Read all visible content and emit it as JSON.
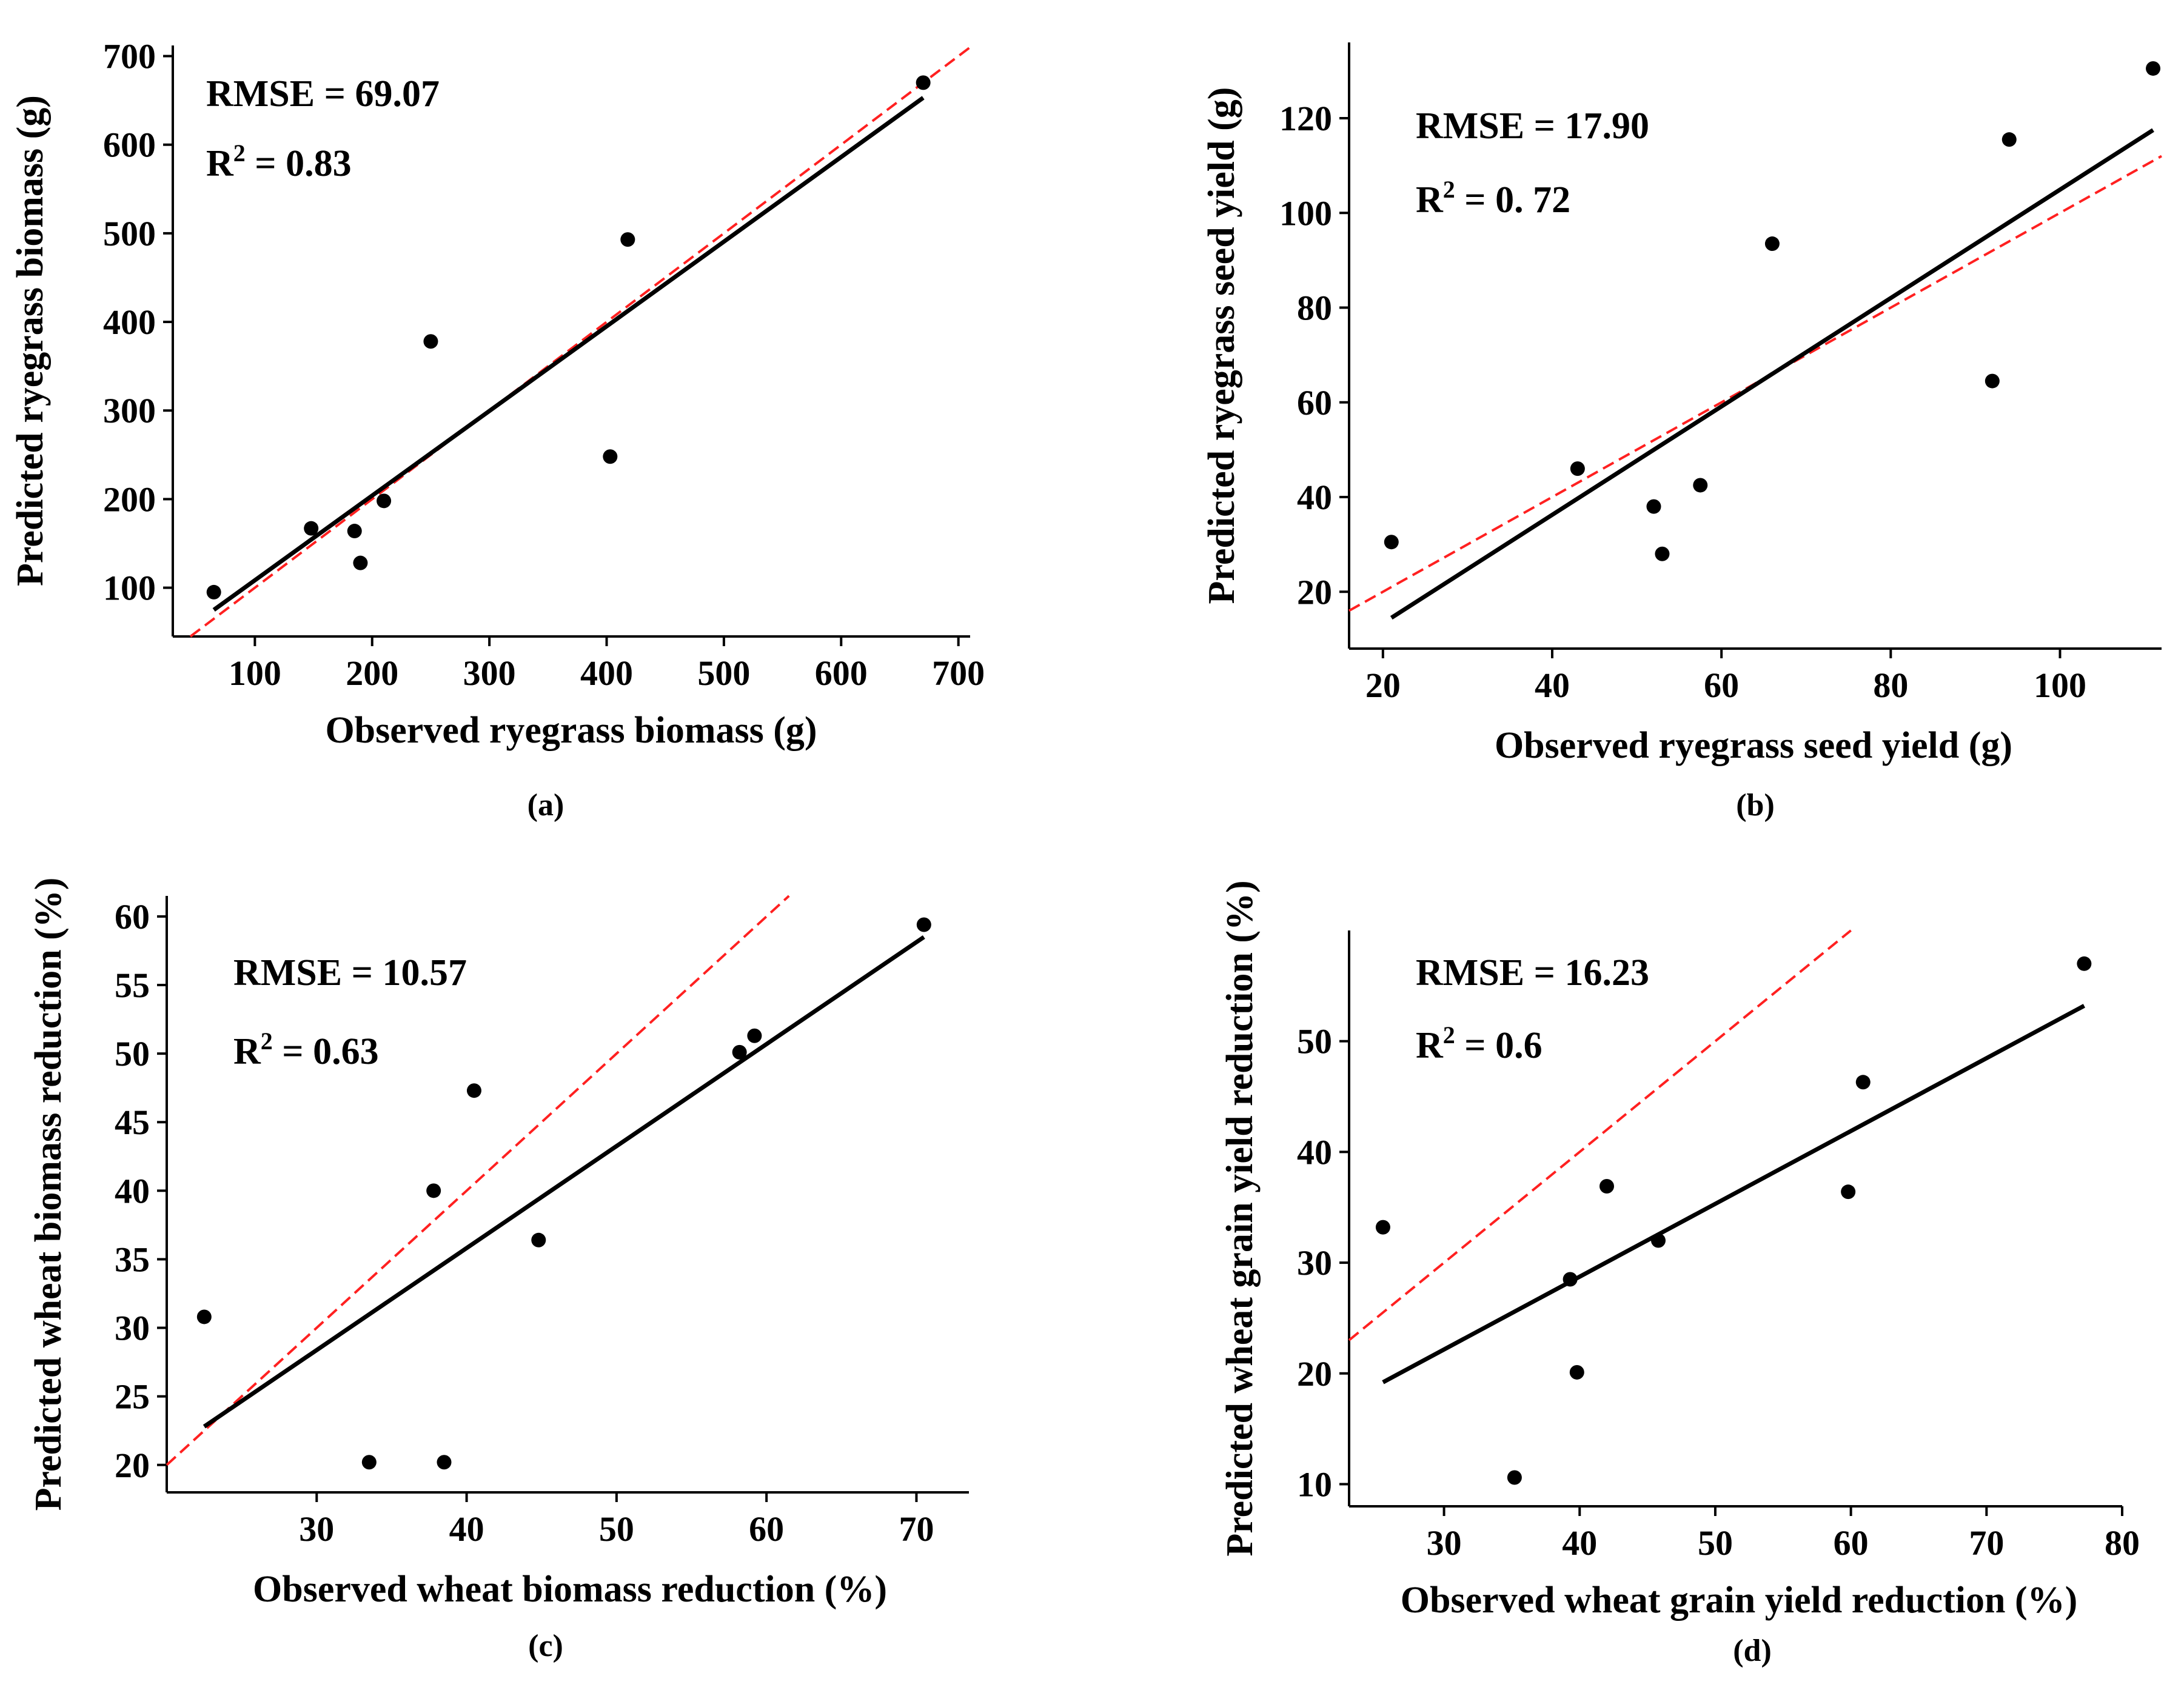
{
  "figure": {
    "panels": [
      "a",
      "b",
      "c",
      "d"
    ]
  },
  "chart_data": [
    {
      "id": "a",
      "type": "scatter",
      "label": "(a)",
      "xlabel": "Observed ryegrass biomass (g)",
      "ylabel": "Predicted ryegrass biomass (g)",
      "xlim": [
        30,
        710
      ],
      "ylim": [
        45,
        712
      ],
      "xticks": [
        100,
        200,
        300,
        400,
        500,
        600,
        700
      ],
      "yticks": [
        100,
        200,
        300,
        400,
        500,
        600,
        700
      ],
      "rmse_text": "RMSE = 69.07",
      "r2_prefix": "R",
      "r2_sup": "2",
      "r2_value": " = 0.83",
      "points": [
        [
          65,
          95
        ],
        [
          148,
          167
        ],
        [
          185,
          164
        ],
        [
          190,
          128
        ],
        [
          210,
          198
        ],
        [
          250,
          378
        ],
        [
          403,
          248
        ],
        [
          418,
          493
        ],
        [
          670,
          670
        ]
      ],
      "fit_line": [
        [
          65,
          75
        ],
        [
          670,
          653
        ]
      ],
      "identity_line": true,
      "colors": {
        "points": "#000000",
        "fit": "#000000",
        "identity": "#ff2020"
      }
    },
    {
      "id": "b",
      "type": "scatter",
      "label": "(b)",
      "xlabel": "Observed ryegrass seed yield (g)",
      "ylabel": "Predicted ryegrass seed yield (g)",
      "xlim": [
        16,
        112
      ],
      "ylim": [
        8,
        136
      ],
      "xticks": [
        20,
        40,
        60,
        80,
        100
      ],
      "yticks": [
        20,
        40,
        60,
        80,
        100,
        120
      ],
      "rmse_text": "RMSE = 17.90",
      "r2_prefix": "R",
      "r2_sup": "2",
      "r2_value": " = 0. 72",
      "points": [
        [
          21,
          30.5
        ],
        [
          43,
          46
        ],
        [
          52,
          38
        ],
        [
          53,
          28
        ],
        [
          57.5,
          42.5
        ],
        [
          66,
          93.5
        ],
        [
          92,
          64.5
        ],
        [
          94,
          115.5
        ],
        [
          111,
          130.5
        ]
      ],
      "fit_line": [
        [
          21,
          14.5
        ],
        [
          111,
          117.5
        ]
      ],
      "identity_line": true,
      "colors": {
        "points": "#000000",
        "fit": "#000000",
        "identity": "#ff2020"
      }
    },
    {
      "id": "c",
      "type": "scatter",
      "label": "(c)",
      "xlabel": "Observed wheat biomass reduction (%)",
      "ylabel": "Predicted wheat biomass reduction (%)",
      "xlim": [
        20,
        73.5
      ],
      "ylim": [
        18,
        61.5
      ],
      "xticks": [
        30,
        40,
        50,
        60,
        70
      ],
      "yticks": [
        20,
        25,
        30,
        35,
        40,
        45,
        50,
        55,
        60
      ],
      "rmse_text": "RMSE = 10.57",
      "r2_prefix": "R",
      "r2_sup": "2",
      "r2_value": " = 0.63",
      "points": [
        [
          22.5,
          30.8
        ],
        [
          33.5,
          20.2
        ],
        [
          37.8,
          40
        ],
        [
          38.5,
          20.2
        ],
        [
          40.5,
          47.3
        ],
        [
          44.8,
          36.4
        ],
        [
          58.2,
          50.1
        ],
        [
          59.2,
          51.3
        ],
        [
          70.5,
          59.4
        ]
      ],
      "fit_line": [
        [
          22.5,
          22.8
        ],
        [
          70.5,
          58.5
        ]
      ],
      "identity_line": true,
      "colors": {
        "points": "#000000",
        "fit": "#000000",
        "identity": "#ff2020"
      }
    },
    {
      "id": "d",
      "type": "scatter",
      "label": "(d)",
      "xlabel": "Observed wheat grain yield reduction (%)",
      "ylabel": "Predicted wheat grain yield reduction (%)",
      "xlim": [
        23,
        80
      ],
      "ylim": [
        8,
        60
      ],
      "xticks": [
        30,
        40,
        50,
        60,
        70,
        80
      ],
      "yticks": [
        10,
        20,
        30,
        40,
        50
      ],
      "rmse_text": "RMSE = 16.23",
      "r2_prefix": "R",
      "r2_sup": "2",
      "r2_value": " = 0.6",
      "points": [
        [
          25.5,
          33.2
        ],
        [
          35.2,
          10.6
        ],
        [
          39.3,
          28.5
        ],
        [
          39.8,
          20.1
        ],
        [
          42,
          36.9
        ],
        [
          45.8,
          32
        ],
        [
          59.8,
          36.4
        ],
        [
          60.9,
          46.3
        ],
        [
          77.2,
          57
        ]
      ],
      "fit_line": [
        [
          25.5,
          19.2
        ],
        [
          77.2,
          53.2
        ]
      ],
      "identity_line": true,
      "colors": {
        "points": "#000000",
        "fit": "#000000",
        "identity": "#ff2020"
      }
    }
  ]
}
